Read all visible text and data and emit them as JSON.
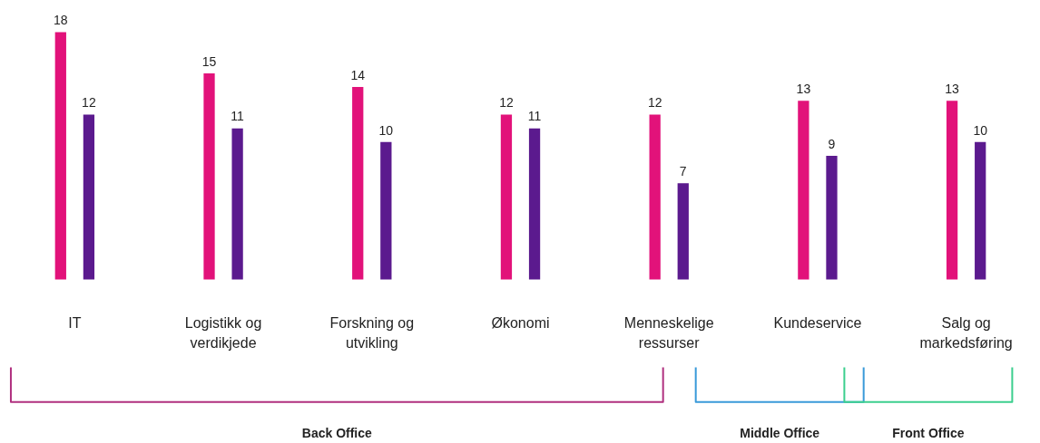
{
  "chart_data": {
    "type": "bar",
    "categories": [
      "IT",
      "Logistikk og\nverdikjede",
      "Forskning og\nutvikling",
      "Økonomi",
      "Menneskelige\nressurser",
      "Kundeservice",
      "Salg og\nmarkedsføring"
    ],
    "series": [
      {
        "color": "#e2127a",
        "values": [
          18,
          15,
          14,
          12,
          12,
          13,
          13
        ]
      },
      {
        "color": "#5b1a8e",
        "values": [
          12,
          11,
          10,
          11,
          7,
          9,
          10
        ]
      }
    ],
    "data_labels": true,
    "annotations": [
      "Back Office",
      "Middle Office",
      "Front Office"
    ]
  }
}
